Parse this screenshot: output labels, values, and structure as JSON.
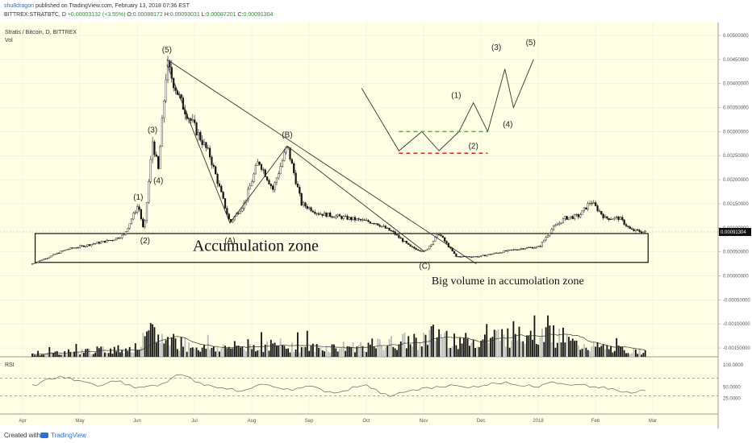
{
  "header": {
    "author": "shu8dragon",
    "published": "published on TradingView.com, February 13, 2018 07:36 EST",
    "symbol": "BITTREX:STRATBTC, D",
    "change": "+0.00003132 (+3.55%)",
    "open_label": "O:",
    "open": "0.00088172",
    "high_label": "H:",
    "high": "0.00093031",
    "low_label": "L:",
    "low": "0.00087201",
    "close_label": "C:",
    "close": "0.00091304"
  },
  "footer": {
    "created": "Created with",
    "brand": "TradingView"
  },
  "colors": {
    "background": "#ffffe6",
    "grid": "#e8e8cc",
    "candle_up": "#ffffff",
    "candle_down": "#111111",
    "volume": "#111111",
    "volume_light": "#bbbbbb",
    "green_dash": "#22cc22",
    "red_dash": "#dd2222",
    "last_price_bg": "#111111"
  },
  "chart_data": [
    {
      "type": "candlestick",
      "title": "Stratis / Bitcoin, D, BITTREX",
      "volume_label": "Vol",
      "last_price": "0.00091304",
      "y_ticks": [
        "0.00500000",
        "0.00450000",
        "0.00400000",
        "0.00350000",
        "0.00300000",
        "0.00250000",
        "0.00200000",
        "0.00150000",
        "0.00100000",
        "0.00050000",
        "0.00000000",
        "-0.00050000",
        "-0.00100000",
        "-0.00150000"
      ],
      "ylim": [
        -0.0016,
        0.0051
      ],
      "x_ticks": [
        "Apr",
        "May",
        "Jun",
        "Jul",
        "Aug",
        "Sep",
        "Oct",
        "Nov",
        "Dec",
        "2018",
        "Feb",
        "Mar"
      ],
      "price_path": [
        {
          "month": 0.0,
          "close": 0.00025
        },
        {
          "month": 0.3,
          "close": 0.0004
        },
        {
          "month": 0.6,
          "close": 0.00055
        },
        {
          "month": 1.0,
          "close": 0.00065
        },
        {
          "month": 1.4,
          "close": 0.00075
        },
        {
          "month": 1.6,
          "close": 0.00085
        },
        {
          "month": 1.85,
          "close": 0.00148
        },
        {
          "month": 1.95,
          "close": 0.0009
        },
        {
          "month": 2.1,
          "close": 0.0028
        },
        {
          "month": 2.2,
          "close": 0.0022
        },
        {
          "month": 2.35,
          "close": 0.0044
        },
        {
          "month": 2.6,
          "close": 0.0036
        },
        {
          "month": 3.1,
          "close": 0.0025
        },
        {
          "month": 3.45,
          "close": 0.0011
        },
        {
          "month": 3.7,
          "close": 0.0015
        },
        {
          "month": 3.95,
          "close": 0.0024
        },
        {
          "month": 4.2,
          "close": 0.0018
        },
        {
          "month": 4.45,
          "close": 0.0027
        },
        {
          "month": 4.7,
          "close": 0.0015
        },
        {
          "month": 5.0,
          "close": 0.0013
        },
        {
          "month": 5.5,
          "close": 0.0012
        },
        {
          "month": 6.0,
          "close": 0.0011
        },
        {
          "month": 6.3,
          "close": 0.0009
        },
        {
          "month": 6.6,
          "close": 0.0006
        },
        {
          "month": 6.85,
          "close": 0.0005
        },
        {
          "month": 7.1,
          "close": 0.00088
        },
        {
          "month": 7.4,
          "close": 0.0004
        },
        {
          "month": 7.8,
          "close": 0.0004
        },
        {
          "month": 8.2,
          "close": 0.0005
        },
        {
          "month": 8.6,
          "close": 0.00058
        },
        {
          "month": 8.85,
          "close": 0.0006
        },
        {
          "month": 9.05,
          "close": 0.00095
        },
        {
          "month": 9.3,
          "close": 0.0012
        },
        {
          "month": 9.55,
          "close": 0.00125
        },
        {
          "month": 9.75,
          "close": 0.00155
        },
        {
          "month": 10.0,
          "close": 0.0012
        },
        {
          "month": 10.25,
          "close": 0.0012
        },
        {
          "month": 10.45,
          "close": 0.00095
        },
        {
          "month": 10.7,
          "close": 0.00091
        }
      ],
      "volume_path": [
        {
          "month": 0.0,
          "v": 0.1
        },
        {
          "month": 1.8,
          "v": 0.3
        },
        {
          "month": 2.1,
          "v": 0.8
        },
        {
          "month": 2.3,
          "v": 0.6
        },
        {
          "month": 3.0,
          "v": 0.3
        },
        {
          "month": 4.3,
          "v": 0.4
        },
        {
          "month": 5.0,
          "v": 0.3
        },
        {
          "month": 6.0,
          "v": 0.4
        },
        {
          "month": 6.8,
          "v": 0.6
        },
        {
          "month": 7.1,
          "v": 0.8
        },
        {
          "month": 7.6,
          "v": 0.5
        },
        {
          "month": 8.4,
          "v": 0.8
        },
        {
          "month": 8.6,
          "v": 1.0
        },
        {
          "month": 9.0,
          "v": 0.9
        },
        {
          "month": 9.5,
          "v": 0.4
        },
        {
          "month": 10.0,
          "v": 0.3
        },
        {
          "month": 10.7,
          "v": 0.15
        }
      ],
      "wave_labels": [
        {
          "text": "(1)",
          "month": 1.85,
          "price": 0.00158
        },
        {
          "text": "(2)",
          "month": 1.97,
          "price": 0.00068
        },
        {
          "text": "(3)",
          "month": 2.1,
          "price": 0.00298
        },
        {
          "text": "(4)",
          "month": 2.2,
          "price": 0.00193
        },
        {
          "text": "(5)",
          "month": 2.35,
          "price": 0.00465
        },
        {
          "text": "(A)",
          "month": 3.45,
          "price": 0.00068
        },
        {
          "text": "(B)",
          "month": 4.45,
          "price": 0.00288
        },
        {
          "text": "(C)",
          "month": 6.85,
          "price": 0.00015
        }
      ],
      "projection_labels": [
        {
          "text": "(1)",
          "month": 7.4,
          "price": 0.0037
        },
        {
          "text": "(2)",
          "month": 7.7,
          "price": 0.00265
        },
        {
          "text": "(3)",
          "month": 8.1,
          "price": 0.0047
        },
        {
          "text": "(4)",
          "month": 8.3,
          "price": 0.0031
        },
        {
          "text": "(5)",
          "month": 8.7,
          "price": 0.0048
        }
      ],
      "projection_path": [
        {
          "month": 5.75,
          "price": 0.0039
        },
        {
          "month": 6.4,
          "price": 0.0026
        },
        {
          "month": 6.8,
          "price": 0.003
        },
        {
          "month": 7.1,
          "price": 0.0026
        },
        {
          "month": 7.45,
          "price": 0.003
        },
        {
          "month": 7.7,
          "price": 0.0036
        },
        {
          "month": 7.95,
          "price": 0.003
        },
        {
          "month": 8.25,
          "price": 0.0043
        },
        {
          "month": 8.4,
          "price": 0.0035
        },
        {
          "month": 8.75,
          "price": 0.0045
        }
      ],
      "zigzag_path": [
        {
          "month": 2.35,
          "price": 0.0044
        },
        {
          "month": 3.45,
          "price": 0.0011
        },
        {
          "month": 4.45,
          "price": 0.0027
        },
        {
          "month": 6.85,
          "price": 0.0005
        }
      ],
      "trendline": [
        {
          "month": 2.35,
          "price": 0.0045
        },
        {
          "month": 7.75,
          "price": 0.00025
        }
      ],
      "support_levels": [
        {
          "name": "green",
          "price": 0.003,
          "from": 6.4,
          "to": 7.95
        },
        {
          "name": "red",
          "price": 0.00255,
          "from": 6.4,
          "to": 7.95
        }
      ],
      "zone": {
        "from_month": 0.05,
        "to_month": 10.75,
        "low": 0.00028,
        "high": 0.00088
      },
      "annotations": [
        {
          "text": "Accumulation zone"
        },
        {
          "text": "Big volume in accumolation zone"
        }
      ]
    },
    {
      "type": "line",
      "title": "RSI",
      "y_ticks": [
        "100.0000",
        "50.0000",
        "25.0000"
      ],
      "ylim": [
        0,
        100
      ],
      "levels": [
        70,
        30
      ],
      "series": [
        {
          "values": [
            55,
            62,
            68,
            75,
            72,
            65,
            60,
            52,
            58,
            63,
            55,
            48,
            50,
            54,
            58,
            70,
            78,
            72,
            60,
            55,
            48,
            45,
            40,
            44,
            52,
            56,
            50,
            45,
            42,
            48,
            52,
            46,
            40,
            38,
            42,
            50,
            55,
            45,
            35,
            32,
            38,
            44,
            48,
            46,
            50,
            55,
            52,
            48,
            50,
            54,
            58,
            62,
            55,
            52,
            50,
            56,
            62,
            58,
            54,
            56,
            50,
            48,
            45,
            42,
            40,
            38,
            42
          ]
        }
      ]
    }
  ]
}
